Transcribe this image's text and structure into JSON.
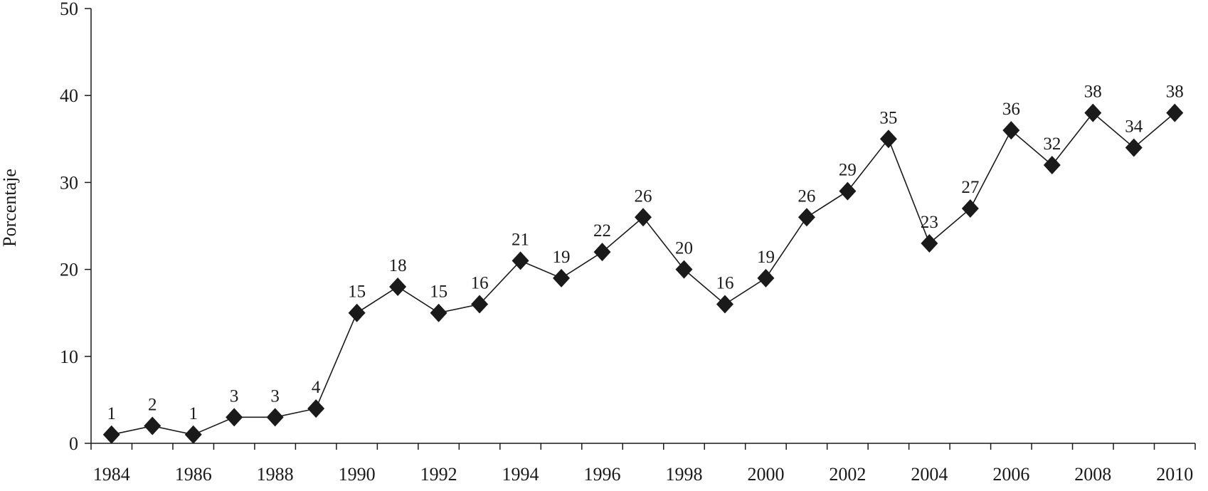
{
  "chart_data": {
    "type": "line",
    "title": "",
    "xlabel": "",
    "ylabel": "Porcentaje",
    "ylim": [
      0,
      50
    ],
    "xlim": [
      1984,
      2011
    ],
    "grid": false,
    "legend": "none",
    "marker": "diamond",
    "color": "#1a1a1a",
    "x": [
      1984.5,
      1985.5,
      1986.5,
      1987.5,
      1988.5,
      1989.5,
      1990.5,
      1991.5,
      1992.5,
      1993.5,
      1994.5,
      1995.5,
      1996.5,
      1997.5,
      1998.5,
      1999.5,
      2000.5,
      2001.5,
      2002.5,
      2003.5,
      2004.5,
      2005.5,
      2006.5,
      2007.5,
      2008.5,
      2009.5,
      2010.5
    ],
    "values": [
      1,
      2,
      1,
      3,
      3,
      4,
      15,
      18,
      15,
      16,
      21,
      19,
      22,
      26,
      20,
      16,
      19,
      26,
      29,
      35,
      23,
      27,
      36,
      32,
      38,
      34,
      38
    ],
    "labels": [
      "1",
      "2",
      "1",
      "3",
      "3",
      "4",
      "15",
      "18",
      "15",
      "16",
      "21",
      "19",
      "22",
      "26",
      "20",
      "16",
      "19",
      "26",
      "29",
      "35",
      "23",
      "27",
      "36",
      "32",
      "38",
      "34",
      "38"
    ],
    "y_ticks": [
      0,
      10,
      20,
      30,
      40,
      50
    ],
    "y_tick_labels": [
      "0",
      "10",
      "20",
      "30",
      "40",
      "50"
    ],
    "x_ticks": [
      1984,
      1985,
      1986,
      1987,
      1988,
      1989,
      1990,
      1991,
      1992,
      1993,
      1994,
      1995,
      1996,
      1997,
      1998,
      1999,
      2000,
      2001,
      2002,
      2003,
      2004,
      2005,
      2006,
      2007,
      2008,
      2009,
      2010,
      2011
    ],
    "x_tick_label_positions": [
      1984.5,
      1986.5,
      1988.5,
      1990.5,
      1992.5,
      1994.5,
      1996.5,
      1998.5,
      2000.5,
      2002.5,
      2004.5,
      2006.5,
      2008.5,
      2010.5
    ],
    "x_tick_labels": [
      "1984",
      "1986",
      "1988",
      "1990",
      "1992",
      "1994",
      "1996",
      "1998",
      "2000",
      "2002",
      "2004",
      "2006",
      "2008",
      "2010"
    ]
  }
}
